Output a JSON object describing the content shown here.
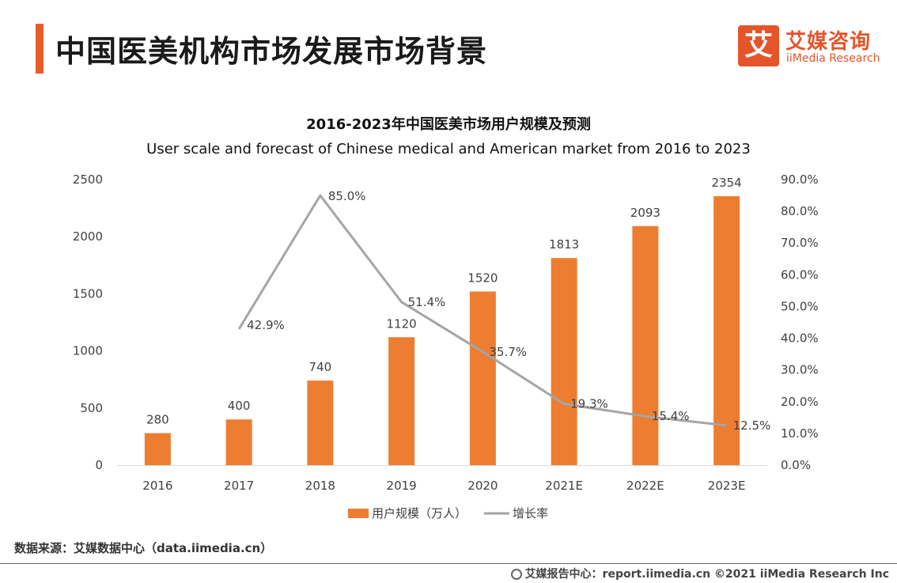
{
  "header": {
    "title": "中国医美机构市场发展市场背景",
    "logo_mark": "艾",
    "logo_cn": "艾媒咨询",
    "logo_en": "iiMedia Research",
    "accent_color": "#e85d27"
  },
  "chart_data": {
    "type": "bar",
    "title": "2016-2023年中国医美市场用户规模及预测",
    "subtitle": "User scale and forecast of Chinese medical and American market from 2016 to 2023",
    "categories": [
      "2016",
      "2017",
      "2018",
      "2019",
      "2020",
      "2021E",
      "2022E",
      "2023E"
    ],
    "series": [
      {
        "name": "用户规模（万人）",
        "type": "bar",
        "axis": "left",
        "color": "#ed7d31",
        "values": [
          280,
          400,
          740,
          1120,
          1520,
          1813,
          2093,
          2354
        ],
        "labels": [
          "280",
          "400",
          "740",
          "1120",
          "1520",
          "1813",
          "2093",
          "2354"
        ]
      },
      {
        "name": "增长率",
        "type": "line",
        "axis": "right",
        "color": "#a5a5a5",
        "values": [
          null,
          42.9,
          85.0,
          51.4,
          35.7,
          19.3,
          15.4,
          12.5
        ],
        "labels": [
          "",
          "42.9%",
          "85.0%",
          "51.4%",
          "35.7%",
          "19.3%",
          "15.4%",
          "12.5%"
        ]
      }
    ],
    "y_left": {
      "ylim": [
        0,
        2500
      ],
      "ticks": [
        0,
        500,
        1000,
        1500,
        2000,
        2500
      ],
      "tick_labels": [
        "0",
        "500",
        "1000",
        "1500",
        "2000",
        "2500"
      ]
    },
    "y_right": {
      "ylim": [
        0,
        90
      ],
      "ticks": [
        0,
        10,
        20,
        30,
        40,
        50,
        60,
        70,
        80,
        90
      ],
      "tick_labels": [
        "0.0%",
        "10.0%",
        "20.0%",
        "30.0%",
        "40.0%",
        "50.0%",
        "60.0%",
        "70.0%",
        "80.0%",
        "90.0%"
      ]
    },
    "grid": false,
    "legend_position": "bottom-center"
  },
  "source_text": "数据来源：艾媒数据中心（data.iimedia.cn）",
  "footer_text": "艾媒报告中心：report.iimedia.cn  ©2021  iiMedia Research  Inc"
}
